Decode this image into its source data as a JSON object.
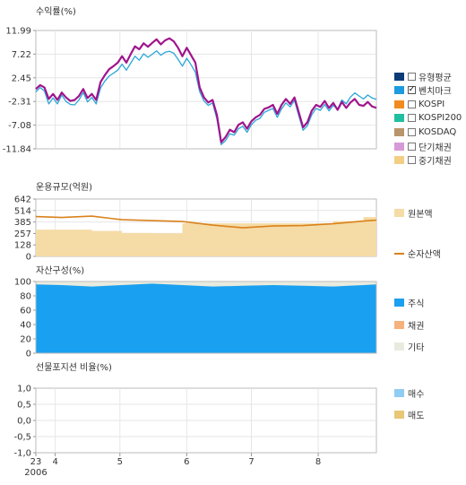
{
  "panels": {
    "returns": {
      "title": "수익률(%)"
    },
    "aum": {
      "title": "운용규모(억원)"
    },
    "asset": {
      "title": "자산구성(%)"
    },
    "futures": {
      "title": "선물포지션 비율(%)"
    }
  },
  "returns_legend": [
    {
      "label": "유형평균",
      "color": "#0c3c78",
      "checked": false
    },
    {
      "label": "벤치마크",
      "color": "#1e9be0",
      "checked": true
    },
    {
      "label": "KOSPI",
      "color": "#f28b1e",
      "checked": false
    },
    {
      "label": "KOSPI200",
      "color": "#1fbf9f",
      "checked": false
    },
    {
      "label": "KOSDAQ",
      "color": "#b9956b",
      "checked": false
    },
    {
      "label": "단기채권",
      "color": "#d79ad8",
      "checked": false
    },
    {
      "label": "중기채권",
      "color": "#f3cf85",
      "checked": false
    }
  ],
  "aum_legend": [
    {
      "label": "원본액",
      "color": "#f5dba6",
      "kind": "box"
    },
    {
      "label": "순자산액",
      "color": "#d9821c",
      "kind": "line"
    }
  ],
  "asset_legend": [
    {
      "label": "주식",
      "color": "#1aa0f0"
    },
    {
      "label": "채권",
      "color": "#f6b27c"
    },
    {
      "label": "기타",
      "color": "#e9ebdf"
    }
  ],
  "futures_legend": [
    {
      "label": "매수",
      "color": "#8fcdf2"
    },
    {
      "label": "매도",
      "color": "#e8c776"
    }
  ],
  "x_axis": {
    "tick_labels": [
      "23",
      "4",
      "5",
      "6",
      "7",
      "8"
    ],
    "year_label": "2006"
  },
  "chart_data": [
    {
      "type": "line",
      "title": "수익률(%)",
      "yticks": [
        "11.99",
        "7.22",
        "2.45",
        "-2.31",
        "-7.08",
        "-11.84"
      ],
      "ylim": [
        -11.84,
        11.99
      ],
      "x": [
        "03-23",
        "03-25",
        "03-27",
        "03-29",
        "03-31",
        "04-02",
        "04-04",
        "04-06",
        "04-08",
        "04-10",
        "04-12",
        "04-14",
        "04-16",
        "04-18",
        "04-20",
        "04-22",
        "04-24",
        "04-26",
        "04-28",
        "04-30",
        "05-02",
        "05-04",
        "05-06",
        "05-08",
        "05-10",
        "05-12",
        "05-14",
        "05-16",
        "05-18",
        "05-20",
        "05-22",
        "05-24",
        "05-26",
        "05-28",
        "05-30",
        "06-01",
        "06-03",
        "06-05",
        "06-07",
        "06-09",
        "06-11",
        "06-13",
        "06-15",
        "06-17",
        "06-19",
        "06-21",
        "06-23",
        "06-25",
        "06-27",
        "06-29",
        "07-01",
        "07-03",
        "07-05",
        "07-07",
        "07-09",
        "07-11",
        "07-13",
        "07-15",
        "07-17",
        "07-19",
        "07-21",
        "07-23",
        "07-25",
        "07-27",
        "07-29",
        "07-31",
        "08-02",
        "08-04",
        "08-06",
        "08-08",
        "08-10",
        "08-12",
        "08-14",
        "08-16",
        "08-18",
        "08-20",
        "08-22",
        "08-24",
        "08-26",
        "08-28"
      ],
      "series": [
        {
          "name": "",
          "color": "#a0148c",
          "values": [
            0.2,
            1.0,
            0.5,
            -1.8,
            -0.8,
            -2.0,
            -0.5,
            -1.5,
            -2.2,
            -2.0,
            -1.2,
            0.2,
            -1.6,
            -0.8,
            -2.0,
            1.6,
            3.0,
            4.2,
            4.8,
            5.5,
            6.8,
            5.5,
            7.2,
            8.8,
            8.2,
            9.4,
            8.7,
            9.5,
            10.2,
            9.2,
            10.0,
            10.4,
            9.8,
            8.5,
            6.8,
            8.5,
            7.0,
            5.5,
            0.5,
            -1.5,
            -2.5,
            -2.0,
            -5.0,
            -10.5,
            -9.5,
            -8.0,
            -8.5,
            -7.0,
            -6.5,
            -7.8,
            -6.3,
            -5.5,
            -5.0,
            -3.8,
            -3.5,
            -3.0,
            -4.8,
            -3.0,
            -1.8,
            -2.8,
            -1.5,
            -4.5,
            -7.5,
            -6.5,
            -4.2,
            -3.0,
            -3.4,
            -2.2,
            -3.6,
            -2.6,
            -4.0,
            -2.4,
            -3.6,
            -2.5,
            -1.8,
            -3.0,
            -3.2,
            -2.4,
            -3.3,
            -3.6
          ]
        },
        {
          "name": "",
          "color": "#2aa6d8",
          "values": [
            -0.4,
            0.5,
            -0.2,
            -2.8,
            -1.6,
            -2.8,
            -1.0,
            -2.3,
            -2.9,
            -3.0,
            -2.0,
            -0.5,
            -2.4,
            -1.5,
            -2.8,
            0.4,
            1.8,
            2.8,
            3.4,
            4.0,
            5.2,
            4.0,
            5.4,
            6.8,
            6.0,
            7.3,
            6.6,
            7.2,
            7.9,
            7.0,
            7.6,
            7.8,
            7.4,
            6.2,
            4.8,
            6.4,
            5.1,
            3.6,
            -0.3,
            -2.2,
            -3.1,
            -2.6,
            -5.8,
            -11.0,
            -10.2,
            -8.8,
            -9.1,
            -7.8,
            -7.3,
            -8.5,
            -7.0,
            -6.1,
            -5.7,
            -4.5,
            -4.1,
            -3.7,
            -5.5,
            -3.8,
            -2.6,
            -3.4,
            -2.1,
            -5.2,
            -8.1,
            -7.2,
            -5.0,
            -3.7,
            -4.1,
            -2.9,
            -4.2,
            -3.1,
            -3.8,
            -2.0,
            -2.8,
            -1.4,
            -0.6,
            -1.2,
            -1.8,
            -1.0,
            -1.6,
            -1.9
          ]
        }
      ]
    },
    {
      "type": "area",
      "title": "운용규모(억원)",
      "yticks": [
        "642",
        "514",
        "385",
        "257",
        "128",
        "0"
      ],
      "ylim": [
        0,
        642
      ],
      "x": [
        "03-23",
        "04-04",
        "04-18",
        "05-02",
        "05-16",
        "05-30",
        "06-13",
        "06-27",
        "07-11",
        "07-25",
        "08-08",
        "08-22",
        "08-28"
      ],
      "series": [
        {
          "name": "원본액",
          "color": "#f5dba6",
          "values": [
            300,
            300,
            285,
            262,
            258,
            370,
            370,
            370,
            370,
            370,
            395,
            440,
            480
          ]
        },
        {
          "name": "순자산액",
          "color": "#d9821c",
          "values": [
            445,
            435,
            450,
            410,
            400,
            390,
            350,
            320,
            340,
            345,
            365,
            395,
            405
          ]
        }
      ]
    },
    {
      "type": "area",
      "title": "자산구성(%)",
      "yticks": [
        "100",
        "80",
        "60",
        "40",
        "20",
        "0"
      ],
      "ylim": [
        0,
        100
      ],
      "x": [
        "03-23",
        "04-04",
        "04-18",
        "05-02",
        "05-16",
        "05-30",
        "06-13",
        "06-27",
        "07-11",
        "07-25",
        "08-08",
        "08-22",
        "08-28"
      ],
      "series": [
        {
          "name": "주식",
          "color": "#1aa0f0",
          "values": [
            96,
            95,
            93,
            95,
            97,
            95,
            93,
            94,
            95,
            94,
            93,
            95,
            96
          ]
        },
        {
          "name": "채권",
          "color": "#f6b27c",
          "values": [
            0,
            0,
            0,
            0,
            0,
            0,
            0,
            0,
            0,
            0,
            0,
            0,
            0
          ]
        },
        {
          "name": "기타",
          "color": "#e9ebdf",
          "values": [
            4,
            5,
            7,
            5,
            3,
            5,
            7,
            6,
            5,
            6,
            7,
            5,
            4
          ]
        }
      ]
    },
    {
      "type": "bar",
      "title": "선물포지션 비율(%)",
      "yticks": [
        "1,0",
        "0,5",
        "0,0",
        "-0,5",
        "-1,0"
      ],
      "ylim": [
        -1.0,
        1.0
      ],
      "series": [
        {
          "name": "매수",
          "color": "#8fcdf2",
          "values": []
        },
        {
          "name": "매도",
          "color": "#e8c776",
          "values": []
        }
      ]
    }
  ]
}
